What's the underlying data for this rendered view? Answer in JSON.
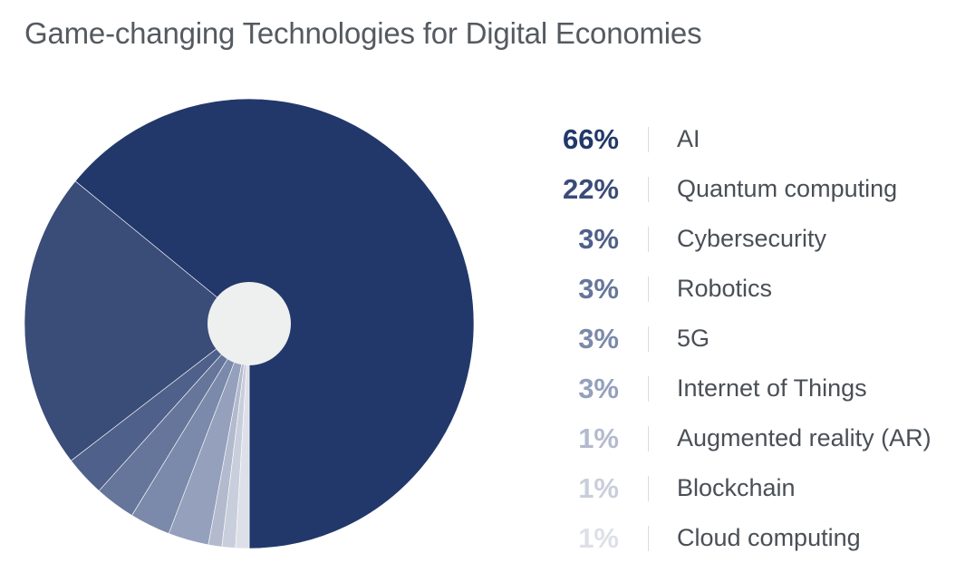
{
  "chart_data": {
    "type": "pie",
    "title": "Game-changing Technologies for Digital Economies",
    "categories": [
      "AI",
      "Quantum computing",
      "Cybersecurity",
      "Robotics",
      "5G",
      "Internet of Things",
      "Augmented reality (AR)",
      "Blockchain",
      "Cloud computing"
    ],
    "values": [
      66,
      22,
      3,
      3,
      3,
      3,
      1,
      1,
      1
    ],
    "value_labels": [
      "66%",
      "22%",
      "3%",
      "3%",
      "3%",
      "3%",
      "1%",
      "1%",
      "1%"
    ],
    "colors": [
      "#22386a",
      "#3a4c78",
      "#4f608a",
      "#66769b",
      "#7b89aa",
      "#94a0bc",
      "#b3bacd",
      "#c9cedc",
      "#dde0e8"
    ],
    "legend_placement": "right",
    "center_hole": true
  }
}
